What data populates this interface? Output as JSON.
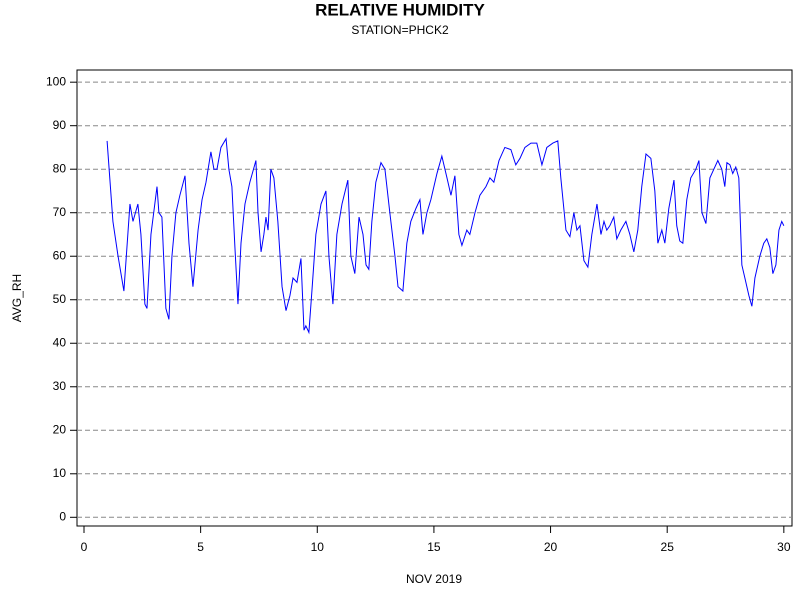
{
  "chart_data": {
    "type": "line",
    "title": "RELATIVE HUMIDITY",
    "subtitle": "STATION=PHCK2",
    "x_label": "NOV 2019",
    "y_label": "AVG_RH",
    "xlim": [
      -0.3,
      30.35
    ],
    "ylim": [
      -2,
      102.8
    ],
    "xticks": [
      0,
      5,
      10,
      15,
      20,
      25,
      30
    ],
    "yticks": [
      0,
      10,
      20,
      30,
      40,
      50,
      60,
      70,
      80,
      90,
      100
    ],
    "grid": true,
    "x": [
      0.99,
      1.24,
      1.46,
      1.71,
      1.97,
      2.1,
      2.31,
      2.44,
      2.61,
      2.7,
      2.87,
      3.13,
      3.21,
      3.34,
      3.51,
      3.64,
      3.77,
      3.94,
      4.11,
      4.33,
      4.5,
      4.67,
      4.89,
      5.06,
      5.23,
      5.44,
      5.57,
      5.7,
      5.87,
      6.09,
      6.21,
      6.34,
      6.47,
      6.6,
      6.73,
      6.9,
      7.11,
      7.37,
      7.46,
      7.59,
      7.71,
      7.8,
      7.89,
      8.01,
      8.14,
      8.31,
      8.49,
      8.66,
      8.83,
      8.96,
      9.13,
      9.3,
      9.43,
      9.51,
      9.64,
      9.77,
      9.94,
      10.16,
      10.37,
      10.5,
      10.67,
      10.84,
      11.06,
      11.31,
      11.44,
      11.61,
      11.79,
      11.96,
      12.09,
      12.21,
      12.34,
      12.51,
      12.73,
      12.9,
      13.11,
      13.33,
      13.46,
      13.67,
      13.84,
      14.01,
      14.23,
      14.4,
      14.53,
      14.7,
      14.87,
      15.13,
      15.34,
      15.56,
      15.73,
      15.9,
      16.07,
      16.2,
      16.41,
      16.54,
      16.76,
      16.97,
      17.23,
      17.4,
      17.57,
      17.79,
      18.04,
      18.3,
      18.51,
      18.69,
      18.9,
      19.16,
      19.41,
      19.63,
      19.84,
      20.1,
      20.31,
      20.44,
      20.66,
      20.83,
      21.0,
      21.13,
      21.26,
      21.43,
      21.6,
      21.77,
      21.99,
      22.16,
      22.29,
      22.41,
      22.54,
      22.71,
      22.84,
      23.01,
      23.23,
      23.4,
      23.57,
      23.74,
      23.91,
      24.09,
      24.3,
      24.47,
      24.6,
      24.77,
      24.9,
      25.07,
      25.29,
      25.41,
      25.54,
      25.67,
      25.84,
      26.01,
      26.23,
      26.36,
      26.49,
      26.66,
      26.83,
      27.0,
      27.17,
      27.34,
      27.47,
      27.56,
      27.69,
      27.81,
      27.94,
      28.07,
      28.2,
      28.33,
      28.5,
      28.63,
      28.76,
      28.97,
      29.14,
      29.27,
      29.4,
      29.53,
      29.66,
      29.79,
      29.91,
      30.0
    ],
    "series": [
      {
        "name": "AVG_RH",
        "color": "#0000ff",
        "values": [
          86.5,
          68,
          60,
          52,
          72,
          68,
          72,
          65,
          49,
          48,
          65,
          76,
          70,
          69,
          48,
          45.5,
          60,
          70,
          74,
          78.5,
          63,
          53,
          66,
          73,
          77,
          84,
          80,
          80,
          85,
          87,
          80,
          76,
          62,
          49,
          63,
          72,
          77,
          82,
          70,
          61,
          65,
          69,
          66,
          80,
          78,
          68,
          53,
          47.5,
          51,
          55,
          54,
          59.5,
          43,
          44,
          42.5,
          52,
          65,
          72,
          75,
          60,
          49,
          65,
          72,
          77.5,
          60,
          56,
          69,
          65,
          58,
          57,
          68,
          77,
          81.5,
          80,
          70,
          60,
          53,
          52,
          63,
          68,
          71,
          73,
          65,
          70,
          73,
          79,
          83,
          78,
          74,
          78.5,
          65,
          62.5,
          66,
          65,
          70,
          74,
          76,
          78,
          77,
          82,
          85,
          84.5,
          81,
          82.5,
          85,
          86,
          86,
          81,
          85,
          86,
          86.5,
          78,
          66,
          64.5,
          70,
          66,
          67,
          59,
          57.5,
          65,
          72,
          65,
          68,
          66,
          67,
          69,
          64,
          66,
          68,
          65,
          61,
          66,
          76,
          83.5,
          82.5,
          75,
          63,
          66,
          63,
          71,
          77.5,
          67,
          63.5,
          63,
          73,
          78,
          80,
          82,
          70,
          67.5,
          78,
          80,
          82,
          80,
          76,
          81.5,
          81,
          79,
          80.5,
          78,
          58,
          55,
          51,
          48.5,
          55,
          60,
          63,
          64,
          62,
          56,
          58,
          66,
          68,
          67
        ]
      }
    ]
  }
}
